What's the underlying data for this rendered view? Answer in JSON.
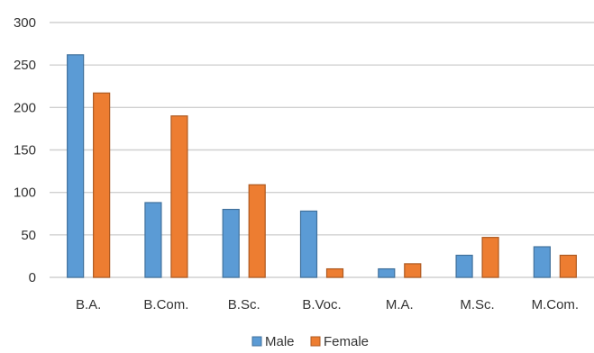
{
  "colors": {
    "male": "#5b9bd5",
    "male_stroke": "#41719c",
    "female": "#ed7d31",
    "female_stroke": "#ae5a21",
    "gridline": "#d0d0d0",
    "axis_text": "#333333"
  },
  "chart_data": {
    "type": "bar",
    "title": "",
    "xlabel": "",
    "ylabel": "",
    "categories": [
      "B.A.",
      "B.Com.",
      "B.Sc.",
      "B.Voc.",
      "M.A.",
      "M.Sc.",
      "M.Com."
    ],
    "series": [
      {
        "name": "Male",
        "values": [
          262,
          88,
          80,
          78,
          10,
          26,
          36
        ]
      },
      {
        "name": "Female",
        "values": [
          217,
          190,
          109,
          10,
          16,
          47,
          26
        ]
      }
    ],
    "ylim": [
      0,
      300
    ],
    "yticks": [
      0,
      50,
      100,
      150,
      200,
      250,
      300
    ],
    "grid": true,
    "legend_position": "bottom"
  }
}
